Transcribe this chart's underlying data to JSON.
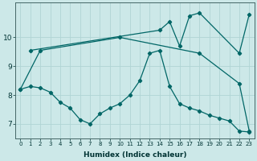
{
  "xlabel": "Humidex (Indice chaleur)",
  "bg_color": "#cce8e8",
  "grid_color": "#b0d4d4",
  "line_color": "#006666",
  "xlim": [
    -0.5,
    23.5
  ],
  "ylim": [
    6.5,
    11.2
  ],
  "yticks": [
    7,
    8,
    9,
    10
  ],
  "xticks": [
    0,
    1,
    2,
    3,
    4,
    5,
    6,
    7,
    8,
    9,
    10,
    11,
    12,
    13,
    14,
    15,
    16,
    17,
    18,
    19,
    20,
    21,
    22,
    23
  ],
  "series1_x": [
    1,
    14,
    15,
    16,
    17,
    18,
    22,
    23
  ],
  "series1_y": [
    9.55,
    10.25,
    10.55,
    9.7,
    10.75,
    10.85,
    9.45,
    10.8
  ],
  "series2_x": [
    0,
    1,
    2,
    3,
    4,
    5,
    6,
    7,
    8,
    9,
    10,
    11,
    12,
    13,
    14,
    15,
    16,
    17,
    18,
    19,
    20,
    21,
    22,
    23
  ],
  "series2_y": [
    8.2,
    8.3,
    8.25,
    8.1,
    7.75,
    7.55,
    7.15,
    7.0,
    7.35,
    7.55,
    7.7,
    8.0,
    8.5,
    9.45,
    9.55,
    8.3,
    7.7,
    7.55,
    7.45,
    7.3,
    7.2,
    7.1,
    6.75,
    6.72
  ],
  "series3_x": [
    0,
    2,
    10,
    18,
    22,
    23
  ],
  "series3_y": [
    8.2,
    9.55,
    10.0,
    9.45,
    8.4,
    6.75
  ]
}
